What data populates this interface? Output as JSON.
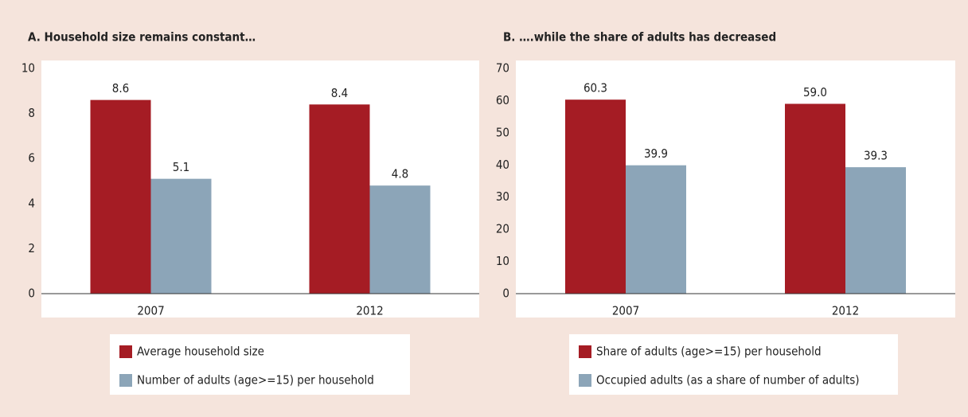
{
  "chart_data": [
    {
      "type": "bar",
      "title": "A. Household size remains constant…",
      "categories": [
        "2007",
        "2012"
      ],
      "series": [
        {
          "name": "Average household size",
          "color": "#a51c24",
          "values": [
            8.6,
            8.4
          ],
          "value_labels": [
            "8.6",
            "8.4"
          ]
        },
        {
          "name": "Number of adults (age>=15) per household",
          "color": "#8ca5b8",
          "values": [
            5.1,
            4.8
          ],
          "value_labels": [
            "5.1",
            "4.8"
          ]
        }
      ],
      "ylim": [
        0,
        10
      ],
      "yticks": [
        0,
        2,
        4,
        6,
        8,
        10
      ]
    },
    {
      "type": "bar",
      "title": "B. ….while the share of adults has decreased",
      "categories": [
        "2007",
        "2012"
      ],
      "series": [
        {
          "name": "Share of adults (age>=15) per household",
          "color": "#a51c24",
          "values": [
            60.3,
            59.0
          ],
          "value_labels": [
            "60.3",
            "59.0"
          ]
        },
        {
          "name": "Occupied adults (as a share of number of adults)",
          "color": "#8ca5b8",
          "values": [
            39.9,
            39.3
          ],
          "value_labels": [
            "39.9",
            "39.3"
          ]
        }
      ],
      "ylim": [
        0,
        70
      ],
      "yticks": [
        0,
        10,
        20,
        30,
        40,
        50,
        60,
        70
      ]
    }
  ]
}
